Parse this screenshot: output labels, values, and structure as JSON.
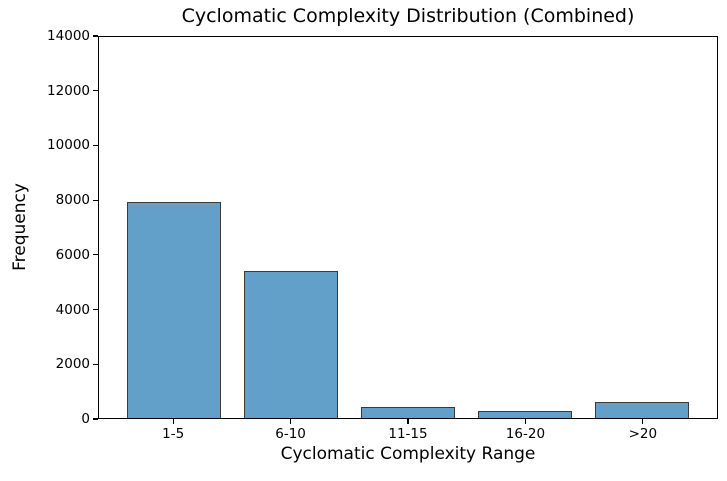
{
  "chart_data": {
    "type": "bar",
    "title": "Cyclomatic Complexity Distribution (Combined)",
    "xlabel": "Cyclomatic Complexity Range",
    "ylabel": "Frequency",
    "categories": [
      "1-5",
      "6-10",
      "11-15",
      "16-20",
      ">20"
    ],
    "values": [
      7950,
      5400,
      410,
      240,
      575
    ],
    "ylim": [
      0,
      14000
    ],
    "yticks": [
      0,
      2000,
      4000,
      6000,
      8000,
      10000,
      12000,
      14000
    ],
    "grid": false,
    "legend": "none",
    "bar_color": "#62a0ca",
    "bar_edge_color": "#3a3a3a",
    "axis_color": "#000000",
    "background_color": "#ffffff"
  }
}
